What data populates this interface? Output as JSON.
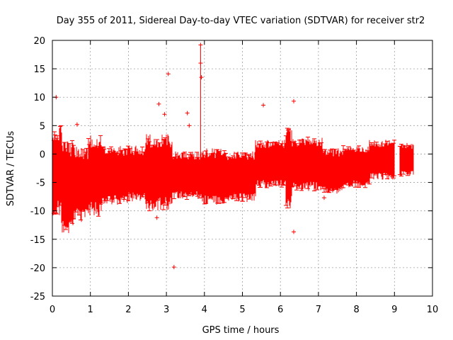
{
  "chart_data": {
    "type": "scatter",
    "title": "Day 355 of 2011, Sidereal Day-to-day VTEC variation (SDTVAR) for receiver str2",
    "xlabel": "GPS time / hours",
    "ylabel": "SDTVAR / TECUs",
    "xlim": [
      0,
      10
    ],
    "ylim": [
      -25,
      20
    ],
    "xticks": [
      0,
      1,
      2,
      3,
      4,
      5,
      6,
      7,
      8,
      9,
      10
    ],
    "yticks": [
      20,
      15,
      10,
      5,
      0,
      -5,
      -10,
      -15,
      -20,
      -25
    ],
    "x_tick_labels": [
      "0",
      "1",
      "2",
      "3",
      "4",
      "5",
      "6",
      "7",
      "8",
      "9",
      "10"
    ],
    "y_tick_labels": [
      "20",
      "15",
      "10",
      "5",
      "0",
      "-5",
      "-10",
      "-15",
      "-20",
      "-25"
    ],
    "grid": true,
    "color": "#ff0000",
    "marker": "+",
    "band_segments": [
      {
        "x_start": 0.0,
        "x_end": 0.25,
        "y_low": -11.0,
        "y_high": 5.0
      },
      {
        "x_start": 0.25,
        "x_end": 0.55,
        "y_low": -14.0,
        "y_high": 2.5
      },
      {
        "x_start": 0.55,
        "x_end": 0.95,
        "y_low": -12.0,
        "y_high": 1.5
      },
      {
        "x_start": 0.95,
        "x_end": 1.3,
        "y_low": -11.0,
        "y_high": 3.5
      },
      {
        "x_start": 1.3,
        "x_end": 2.0,
        "y_low": -9.0,
        "y_high": 1.5
      },
      {
        "x_start": 2.0,
        "x_end": 2.45,
        "y_low": -8.5,
        "y_high": 1.5
      },
      {
        "x_start": 2.45,
        "x_end": 3.15,
        "y_low": -10.0,
        "y_high": 3.5
      },
      {
        "x_start": 3.15,
        "x_end": 3.95,
        "y_low": -8.0,
        "y_high": 0.5
      },
      {
        "x_start": 3.95,
        "x_end": 4.55,
        "y_low": -9.0,
        "y_high": 1.0
      },
      {
        "x_start": 4.55,
        "x_end": 5.35,
        "y_low": -8.5,
        "y_high": 0.5
      },
      {
        "x_start": 5.35,
        "x_end": 6.15,
        "y_low": -6.0,
        "y_high": 2.5
      },
      {
        "x_start": 6.15,
        "x_end": 6.3,
        "y_low": -10.0,
        "y_high": 5.0
      },
      {
        "x_start": 6.3,
        "x_end": 7.1,
        "y_low": -6.5,
        "y_high": 3.0
      },
      {
        "x_start": 7.1,
        "x_end": 7.65,
        "y_low": -7.0,
        "y_high": 1.0
      },
      {
        "x_start": 7.65,
        "x_end": 8.35,
        "y_low": -6.0,
        "y_high": 1.5
      },
      {
        "x_start": 8.35,
        "x_end": 9.0,
        "y_low": -4.5,
        "y_high": 2.5
      },
      {
        "x_start": 9.15,
        "x_end": 9.5,
        "y_low": -4.0,
        "y_high": 2.0
      }
    ],
    "outliers": [
      {
        "x": 0.1,
        "y": 10.0
      },
      {
        "x": 0.65,
        "y": 5.2
      },
      {
        "x": 2.75,
        "y": -11.2
      },
      {
        "x": 2.8,
        "y": 8.8
      },
      {
        "x": 2.95,
        "y": 7.0
      },
      {
        "x": 3.05,
        "y": 14.1
      },
      {
        "x": 3.2,
        "y": -19.9
      },
      {
        "x": 3.55,
        "y": 7.2
      },
      {
        "x": 3.6,
        "y": 5.0
      },
      {
        "x": 3.9,
        "y": 19.2
      },
      {
        "x": 3.9,
        "y": 16.0
      },
      {
        "x": 3.92,
        "y": 13.5
      },
      {
        "x": 5.55,
        "y": 8.6
      },
      {
        "x": 6.35,
        "y": 9.3
      },
      {
        "x": 6.35,
        "y": -13.7
      },
      {
        "x": 7.15,
        "y": -7.7
      }
    ]
  }
}
